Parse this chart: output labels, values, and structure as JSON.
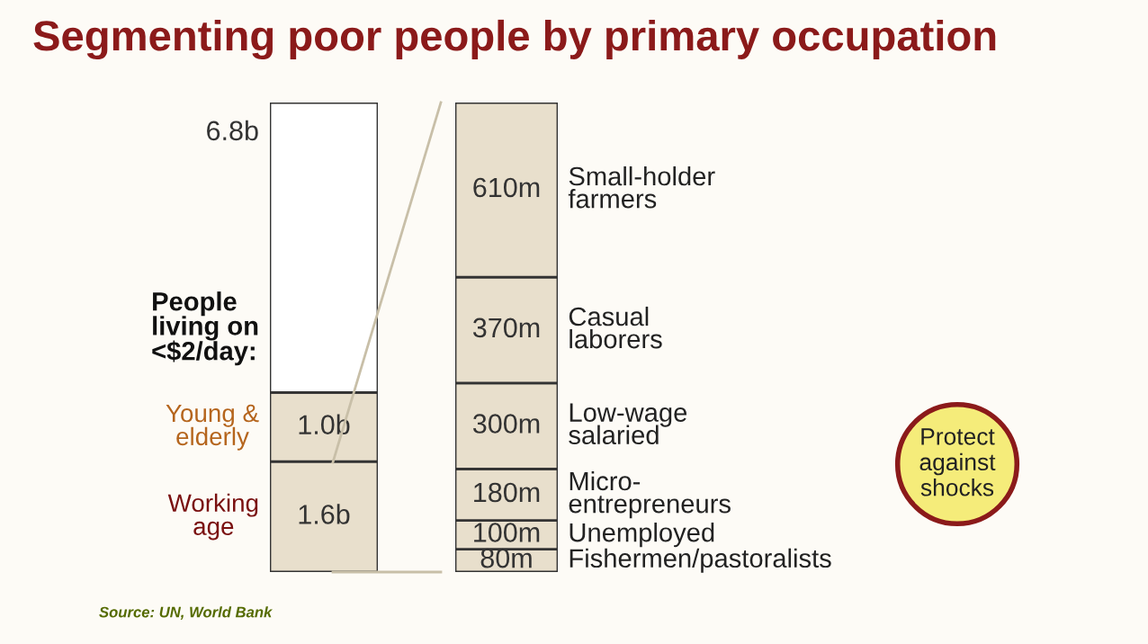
{
  "chart_data": [
    {
      "type": "bar",
      "title": "Segmenting poor people by primary occupation",
      "stacked": true,
      "categories": [
        null
      ],
      "totals": [
        "6.8b"
      ],
      "series": [
        {
          "name": "Working\nage",
          "color": "#e8dfcc",
          "values": [
            1.6
          ],
          "value_labels": [
            "1.6b"
          ]
        },
        {
          "name": "Young &\nelderly",
          "color": "#e8dfcc",
          "values": [
            1.0
          ],
          "value_labels": [
            "1.0b"
          ]
        },
        {
          "color": "#ffffff",
          "values": [
            4.2
          ],
          "value_labels": [
            null
          ]
        }
      ],
      "annotations": [
        "People\nliving on\n<$2/day:",
        "Source: UN, World Bank"
      ]
    },
    {
      "type": "bar",
      "stacked": true,
      "categories": [
        null
      ],
      "series": [
        {
          "name": "Fishermen/pastoralists",
          "color": "#e8dfcc",
          "values": [
            80
          ],
          "value_labels": [
            "80m"
          ]
        },
        {
          "name": "Unemployed",
          "color": "#e8dfcc",
          "values": [
            100
          ],
          "value_labels": [
            "100m"
          ]
        },
        {
          "name": "Micro-\nentrepreneurs",
          "color": "#e8dfcc",
          "values": [
            180
          ],
          "value_labels": [
            "180m"
          ]
        },
        {
          "name": "Low-wage\nsalaried",
          "color": "#e8dfcc",
          "values": [
            300
          ],
          "value_labels": [
            "300m"
          ]
        },
        {
          "name": "Casual\nlaborers",
          "color": "#e8dfcc",
          "values": [
            370
          ],
          "value_labels": [
            "370m"
          ]
        },
        {
          "name": "Small-holder\nfarmers",
          "color": "#e8dfcc",
          "values": [
            610
          ],
          "value_labels": [
            "610m"
          ]
        }
      ],
      "annotations": [
        "Protect\nagainst\nshocks"
      ]
    }
  ]
}
